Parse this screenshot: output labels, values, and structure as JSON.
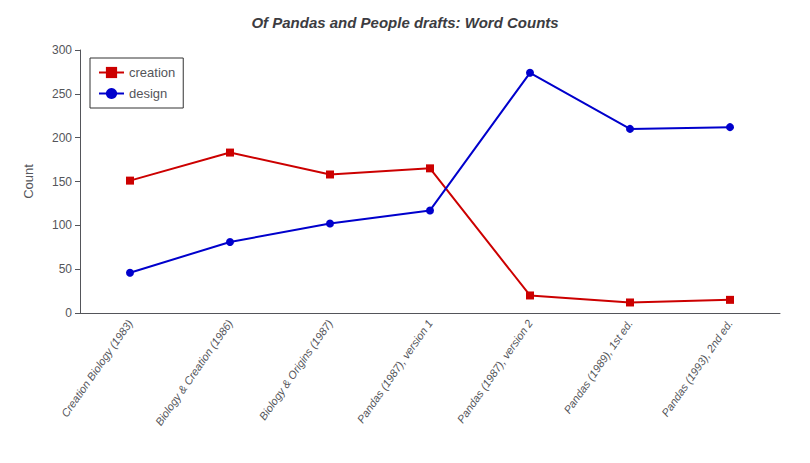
{
  "chart_data": {
    "type": "line",
    "title": "Of Pandas and People drafts: Word Counts",
    "ylabel": "Count",
    "categories": [
      "Creation Biology (1983)",
      "Biology & Creation (1986)",
      "Biology & Origins (1987)",
      "Pandas (1987), version 1",
      "Pandas (1987), version 2",
      "Pandas (1989), 1st ed.",
      "Pandas (1993), 2nd ed."
    ],
    "series": [
      {
        "name": "creation",
        "color": "#cc0000",
        "marker": "square",
        "values": [
          151,
          183,
          158,
          165,
          20,
          12,
          15
        ]
      },
      {
        "name": "design",
        "color": "#0000cc",
        "marker": "circle",
        "values": [
          46,
          81,
          102,
          117,
          274,
          210,
          212
        ]
      }
    ],
    "ylim": [
      0,
      300
    ],
    "yticks": [
      0,
      50,
      100,
      150,
      200,
      250,
      300
    ],
    "grid": false,
    "legend": "upper left"
  }
}
